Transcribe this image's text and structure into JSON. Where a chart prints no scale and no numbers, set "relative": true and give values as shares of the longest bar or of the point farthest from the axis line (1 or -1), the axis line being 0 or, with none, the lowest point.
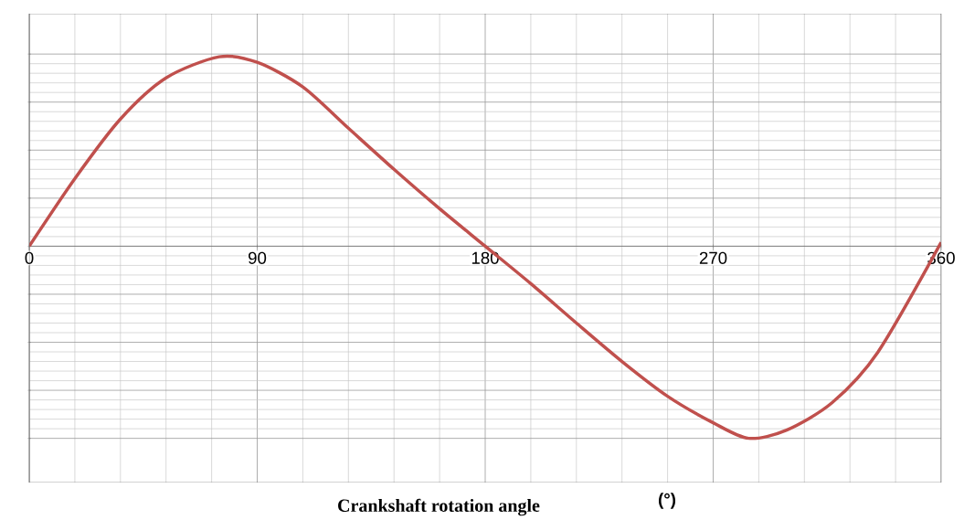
{
  "chart_data": {
    "type": "line",
    "relative": true,
    "xlabel": "Crankshaft rotation angle",
    "annotations": [
      "(°)"
    ],
    "x": [
      0,
      18,
      36,
      54,
      75,
      90,
      108,
      126,
      144,
      162,
      180,
      198,
      216,
      234,
      252,
      270,
      284,
      299,
      317,
      335,
      360
    ],
    "values": [
      0,
      0.352,
      0.662,
      0.876,
      0.986,
      0.957,
      0.829,
      0.614,
      0.4,
      0.195,
      0,
      -0.195,
      -0.4,
      -0.6,
      -0.781,
      -0.919,
      -1,
      -0.957,
      -0.814,
      -0.552,
      0.02
    ],
    "color": "#c0504d",
    "xlim": [
      0,
      360
    ],
    "xticks": [
      0,
      90,
      180,
      270,
      360
    ],
    "grid": true
  }
}
